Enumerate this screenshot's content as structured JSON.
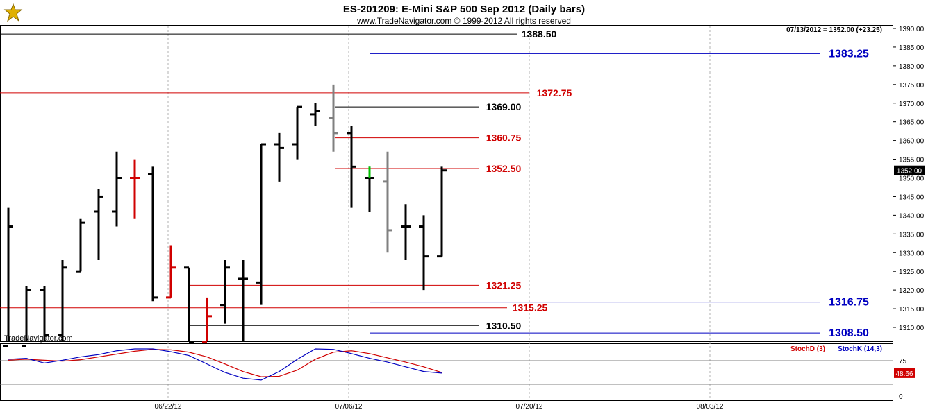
{
  "header": {
    "title": "ES-201209:  E-Mini S&P 500 Sep 2012  (Daily bars)",
    "copyright": "www.TradeNavigator.com © 1999-2012 All rights reserved",
    "last_quote": "07/13/2012 = 1352.00 (+23.25)",
    "watermark": "TradeNavigator.com"
  },
  "colors": {
    "up_bar": "#000000",
    "down_bar": "#d00000",
    "neutral_bar": "#808080",
    "highlight_bar": "#00c000",
    "red_level": "#d00000",
    "blue_level": "#0000c0",
    "black_level": "#000000",
    "stochD": "#d00000",
    "stochK": "#0000c0",
    "grid": "#b0b0b0"
  },
  "chart_data": {
    "type": "ohlc",
    "price_axis": {
      "min": 1305,
      "max": 1392,
      "ticks": [
        1310,
        1315,
        1320,
        1325,
        1330,
        1335,
        1340,
        1345,
        1350,
        1355,
        1360,
        1365,
        1370,
        1375,
        1380,
        1385,
        1390
      ],
      "tick_labels": [
        "1310.00",
        "1315.00",
        "1320.00",
        "1325.00",
        "1330.00",
        "1335.00",
        "1340.00",
        "1345.00",
        "1350.00",
        "1355.00",
        "1360.00",
        "1365.00",
        "1370.00",
        "1375.00",
        "1380.00",
        "1385.00",
        "1390.00"
      ]
    },
    "date_labels": [
      {
        "label": "06/22/12",
        "bar_index": 9
      },
      {
        "label": "07/06/12",
        "bar_index": 19
      },
      {
        "label": "07/20/12",
        "bar_index": 29
      },
      {
        "label": "08/03/12",
        "bar_index": 39
      }
    ],
    "bars": [
      {
        "o": 1305,
        "h": 1342,
        "l": 1305,
        "c": 1337,
        "color": "up"
      },
      {
        "o": 1305,
        "h": 1321,
        "l": 1305,
        "c": 1320,
        "color": "up"
      },
      {
        "o": 1320,
        "h": 1321,
        "l": 1306,
        "c": 1308,
        "color": "up"
      },
      {
        "o": 1308,
        "h": 1328,
        "l": 1305,
        "c": 1326,
        "color": "up"
      },
      {
        "o": 1325,
        "h": 1339,
        "l": 1325,
        "c": 1338,
        "color": "up"
      },
      {
        "o": 1341,
        "h": 1347,
        "l": 1328,
        "c": 1345,
        "color": "up"
      },
      {
        "o": 1341,
        "h": 1357,
        "l": 1337,
        "c": 1350,
        "color": "up"
      },
      {
        "o": 1350,
        "h": 1355,
        "l": 1339,
        "c": 1350,
        "color": "down"
      },
      {
        "o": 1351,
        "h": 1353,
        "l": 1317,
        "c": 1318,
        "color": "up"
      },
      {
        "o": 1318,
        "h": 1332,
        "l": 1318,
        "c": 1326,
        "color": "down"
      },
      {
        "o": 1326,
        "h": 1326,
        "l": 1305,
        "c": 1306,
        "color": "up"
      },
      {
        "o": 1306,
        "h": 1318,
        "l": 1305,
        "c": 1313,
        "color": "down"
      },
      {
        "o": 1316,
        "h": 1328,
        "l": 1311,
        "c": 1326,
        "color": "up"
      },
      {
        "o": 1323,
        "h": 1328,
        "l": 1306,
        "c": 1323,
        "color": "up"
      },
      {
        "o": 1322,
        "h": 1359,
        "l": 1316,
        "c": 1359,
        "color": "up"
      },
      {
        "o": 1359,
        "h": 1362,
        "l": 1349,
        "c": 1358,
        "color": "up"
      },
      {
        "o": 1359,
        "h": 1369,
        "l": 1355,
        "c": 1369,
        "color": "up"
      },
      {
        "o": 1367,
        "h": 1370,
        "l": 1364,
        "c": 1368,
        "color": "up"
      },
      {
        "o": 1366,
        "h": 1375,
        "l": 1357,
        "c": 1362,
        "color": "neutral"
      },
      {
        "o": 1362,
        "h": 1364,
        "l": 1342,
        "c": 1353,
        "color": "up"
      },
      {
        "o": 1350,
        "h": 1353,
        "l": 1341,
        "c": 1350,
        "color": "up",
        "highlight_top": true
      },
      {
        "o": 1349,
        "h": 1357,
        "l": 1330,
        "c": 1336,
        "color": "neutral"
      },
      {
        "o": 1337,
        "h": 1343,
        "l": 1328,
        "c": 1337,
        "color": "up"
      },
      {
        "o": 1337,
        "h": 1340,
        "l": 1320,
        "c": 1329,
        "color": "up"
      },
      {
        "o": 1329,
        "h": 1353,
        "l": 1329,
        "c": 1352,
        "color": "up"
      }
    ],
    "levels": [
      {
        "value": 1388.5,
        "label": "1388.50",
        "color": "black"
      },
      {
        "value": 1383.25,
        "label": "1383.25",
        "color": "blue"
      },
      {
        "value": 1372.75,
        "label": "1372.75",
        "color": "red"
      },
      {
        "value": 1369.0,
        "label": "1369.00",
        "color": "black"
      },
      {
        "value": 1360.75,
        "label": "1360.75",
        "color": "red"
      },
      {
        "value": 1352.5,
        "label": "1352.50",
        "color": "red"
      },
      {
        "value": 1321.25,
        "label": "1321.25",
        "color": "red"
      },
      {
        "value": 1316.75,
        "label": "1316.75",
        "color": "blue"
      },
      {
        "value": 1315.25,
        "label": "1315.25",
        "color": "red"
      },
      {
        "value": 1310.5,
        "label": "1310.50",
        "color": "black"
      },
      {
        "value": 1308.5,
        "label": "1308.50",
        "color": "blue"
      }
    ],
    "current_price": {
      "value": 1352.0,
      "label": "1352.00"
    },
    "stochastic": {
      "legend_d": "StochD (3)",
      "legend_k": "StochK (14,3)",
      "axis_ticks": [
        {
          "value": 75,
          "label": "75"
        },
        {
          "value": 0,
          "label": "0"
        }
      ],
      "upper_line": 75,
      "lower_line": 25,
      "current_value": {
        "value": 48.66,
        "label": "48.66"
      },
      "k_values": [
        78,
        80,
        70,
        76,
        83,
        88,
        96,
        100,
        100,
        94,
        86,
        68,
        50,
        38,
        34,
        52,
        78,
        100,
        99,
        90,
        80,
        72,
        62,
        52,
        48.66
      ],
      "d_values": [
        76,
        78,
        76,
        74,
        77,
        83,
        89,
        95,
        99,
        98,
        93,
        83,
        68,
        52,
        41,
        42,
        55,
        78,
        93,
        96,
        90,
        81,
        72,
        62,
        50
      ]
    }
  }
}
